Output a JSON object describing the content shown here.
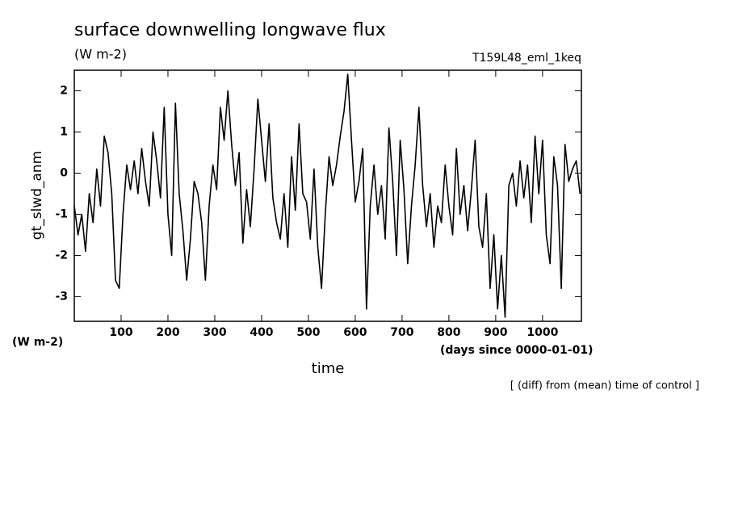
{
  "chart_data": {
    "type": "line",
    "title": "surface downwelling longwave flux",
    "units": "(W m-2)",
    "run_label": "T159L48_eml_1keq",
    "y_label": "gt_slwd_anm",
    "y_units": "(W m-2)",
    "x_label": "time",
    "x_units": "(days since 0000-01-01)",
    "note": "[ (diff) from (mean) time of control ]",
    "xlim": [
      0,
      1083
    ],
    "ylim": [
      -3.6,
      2.5
    ],
    "xticks": [
      100,
      200,
      300,
      400,
      500,
      600,
      700,
      800,
      900,
      1000
    ],
    "yticks": [
      -3,
      -2,
      -1,
      0,
      1,
      2
    ],
    "x": [
      0,
      8,
      16,
      24,
      32,
      40,
      48,
      56,
      64,
      72,
      80,
      88,
      96,
      104,
      112,
      120,
      128,
      136,
      144,
      152,
      160,
      168,
      176,
      184,
      192,
      200,
      208,
      216,
      224,
      232,
      240,
      248,
      256,
      264,
      272,
      280,
      288,
      296,
      304,
      312,
      320,
      328,
      336,
      344,
      352,
      360,
      368,
      376,
      384,
      392,
      400,
      408,
      416,
      424,
      432,
      440,
      448,
      456,
      464,
      472,
      480,
      488,
      496,
      504,
      512,
      520,
      528,
      536,
      544,
      552,
      560,
      568,
      576,
      584,
      592,
      600,
      608,
      616,
      624,
      632,
      640,
      648,
      656,
      664,
      672,
      680,
      688,
      696,
      704,
      712,
      720,
      728,
      736,
      744,
      752,
      760,
      768,
      776,
      784,
      792,
      800,
      808,
      816,
      824,
      832,
      840,
      848,
      856,
      864,
      872,
      880,
      888,
      896,
      904,
      912,
      920,
      928,
      936,
      944,
      952,
      960,
      968,
      976,
      984,
      992,
      1000,
      1008,
      1016,
      1024,
      1032,
      1040,
      1048,
      1056,
      1064,
      1072,
      1080
    ],
    "series": [
      {
        "color": "#000000",
        "values": [
          -0.8,
          -1.5,
          -1.0,
          -1.9,
          -0.5,
          -1.2,
          0.1,
          -0.8,
          0.9,
          0.5,
          -0.5,
          -2.6,
          -2.8,
          -1.0,
          0.2,
          -0.4,
          0.3,
          -0.5,
          0.6,
          -0.2,
          -0.8,
          1.0,
          0.3,
          -0.6,
          1.6,
          -1.0,
          -2.0,
          1.7,
          -0.5,
          -1.4,
          -2.6,
          -1.6,
          -0.2,
          -0.5,
          -1.2,
          -2.6,
          -0.8,
          0.2,
          -0.4,
          1.6,
          0.8,
          2.0,
          0.7,
          -0.3,
          0.5,
          -1.7,
          -0.4,
          -1.3,
          0.1,
          1.8,
          0.8,
          -0.2,
          1.2,
          -0.6,
          -1.2,
          -1.6,
          -0.5,
          -1.8,
          0.4,
          -0.9,
          1.2,
          -0.5,
          -0.7,
          -1.6,
          0.1,
          -1.8,
          -2.8,
          -1.0,
          0.4,
          -0.3,
          0.2,
          0.9,
          1.5,
          2.4,
          0.8,
          -0.7,
          -0.2,
          0.6,
          -3.3,
          -0.8,
          0.2,
          -1.0,
          -0.3,
          -1.6,
          1.1,
          -0.2,
          -2.0,
          0.8,
          -0.4,
          -2.2,
          -0.8,
          0.2,
          1.6,
          -0.3,
          -1.3,
          -0.5,
          -1.8,
          -0.8,
          -1.2,
          0.2,
          -0.8,
          -1.5,
          0.6,
          -1.0,
          -0.3,
          -1.4,
          -0.4,
          0.8,
          -1.3,
          -1.8,
          -0.5,
          -2.8,
          -1.5,
          -3.3,
          -2.0,
          -3.5,
          -0.3,
          0.0,
          -0.8,
          0.3,
          -0.6,
          0.2,
          -1.2,
          0.9,
          -0.5,
          0.8,
          -1.5,
          -2.2,
          0.4,
          -0.3,
          -2.8,
          0.7,
          -0.2,
          0.1,
          0.3,
          -0.5
        ]
      }
    ]
  }
}
